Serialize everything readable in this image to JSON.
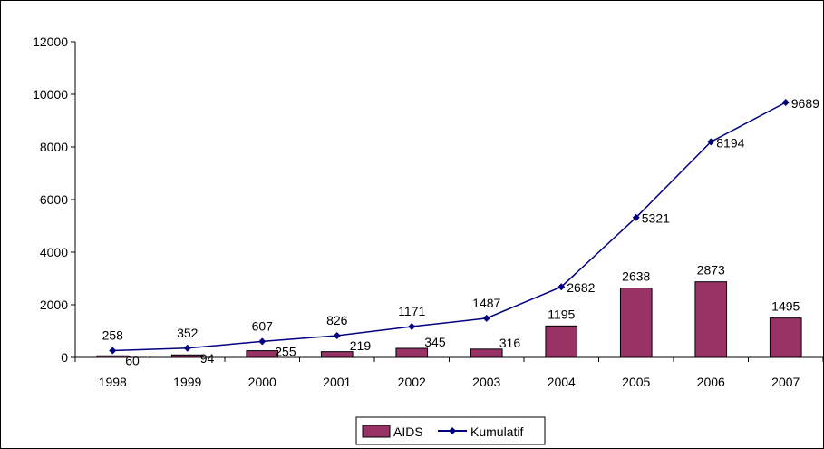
{
  "chart_data": {
    "type": "bar",
    "categories": [
      "1998",
      "1999",
      "2000",
      "2001",
      "2002",
      "2003",
      "2004",
      "2005",
      "2006",
      "2007"
    ],
    "series": [
      {
        "name": "AIDS",
        "kind": "bar",
        "color": "#993366",
        "values": [
          60,
          94,
          255,
          219,
          345,
          316,
          1195,
          2638,
          2873,
          1495
        ]
      },
      {
        "name": "Kumulatif",
        "kind": "line",
        "color": "#000080",
        "values": [
          258,
          352,
          607,
          826,
          1171,
          1487,
          2682,
          5321,
          8194,
          9689
        ]
      }
    ],
    "yticks": [
      "0",
      "2000",
      "4000",
      "6000",
      "8000",
      "10000",
      "12000"
    ],
    "ylim": [
      0,
      12000
    ],
    "title": "",
    "xlabel": "",
    "ylabel": "",
    "grid": false,
    "legend": "bottom"
  }
}
